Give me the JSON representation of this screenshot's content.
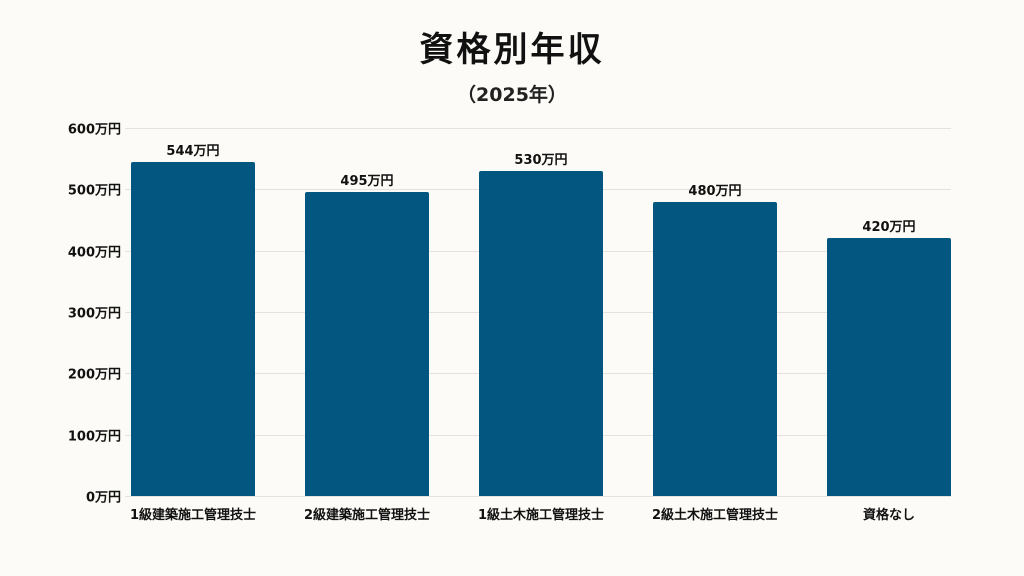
{
  "title": "資格別年収",
  "subtitle": "（2025年）",
  "colors": {
    "bar": "#02567f",
    "background": "#fcfbf7",
    "grid": "#e4e2dc"
  },
  "y_axis": {
    "ticks": [
      "0万円",
      "100万円",
      "200万円",
      "300万円",
      "400万円",
      "500万円",
      "600万円"
    ]
  },
  "bars": [
    {
      "category": "1級建築施工管理技士",
      "value": 544,
      "label": "544万円"
    },
    {
      "category": "2級建築施工管理技士",
      "value": 495,
      "label": "495万円"
    },
    {
      "category": "1級土木施工管理技士",
      "value": 530,
      "label": "530万円"
    },
    {
      "category": "2級土木施工管理技士",
      "value": 480,
      "label": "480万円"
    },
    {
      "category": "資格なし",
      "value": 420,
      "label": "420万円"
    }
  ],
  "chart_data": {
    "type": "bar",
    "title": "資格別年収",
    "subtitle": "（2025年）",
    "categories": [
      "1級建築施工管理技士",
      "2級建築施工管理技士",
      "1級土木施工管理技士",
      "2級土木施工管理技士",
      "資格なし"
    ],
    "values": [
      544,
      495,
      530,
      480,
      420
    ],
    "data_labels": [
      "544万円",
      "495万円",
      "530万円",
      "480万円",
      "420万円"
    ],
    "xlabel": "",
    "ylabel": "",
    "unit": "万円",
    "ylim": [
      0,
      600
    ],
    "yticks": [
      0,
      100,
      200,
      300,
      400,
      500,
      600
    ],
    "grid": true,
    "legend": null
  }
}
